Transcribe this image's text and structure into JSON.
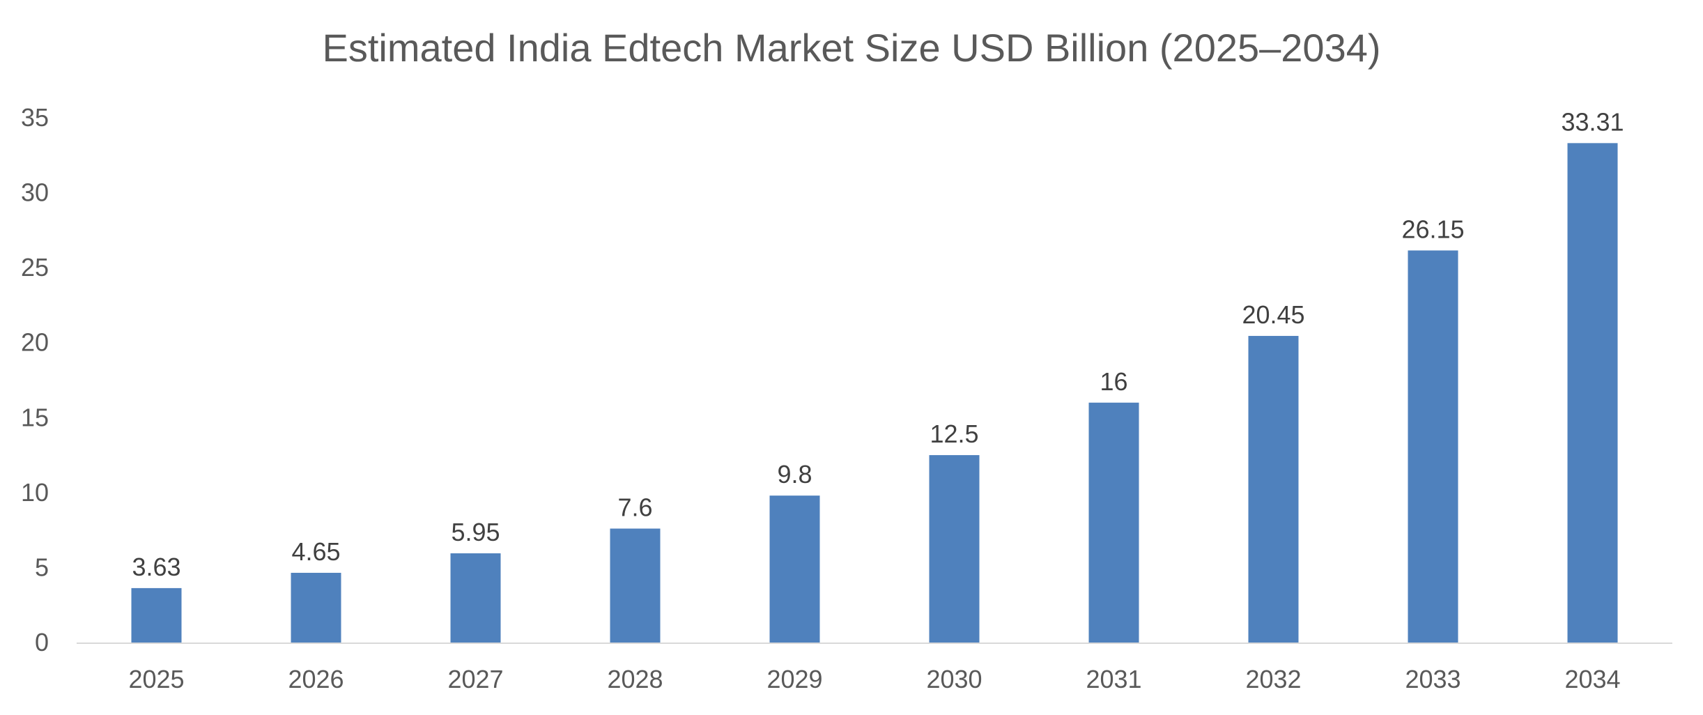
{
  "chart_data": {
    "type": "bar",
    "title": "Estimated India Edtech Market Size USD Billion (2025–2034)",
    "xlabel": "",
    "ylabel": "",
    "categories": [
      "2025",
      "2026",
      "2027",
      "2028",
      "2029",
      "2030",
      "2031",
      "2032",
      "2033",
      "2034"
    ],
    "values": [
      3.63,
      4.65,
      5.95,
      7.6,
      9.8,
      12.5,
      16,
      20.45,
      26.15,
      33.31
    ],
    "data_labels": [
      "3.63",
      "4.65",
      "5.95",
      "7.6",
      "9.8",
      "12.5",
      "16",
      "20.45",
      "26.15",
      "33.31"
    ],
    "ylim": [
      0,
      35
    ],
    "yticks": [
      "0",
      "5",
      "10",
      "15",
      "20",
      "25",
      "30",
      "35"
    ],
    "grid": false,
    "legend": "none",
    "bar_color": "#4f81bd",
    "axis_color": "#d9d9d9"
  }
}
